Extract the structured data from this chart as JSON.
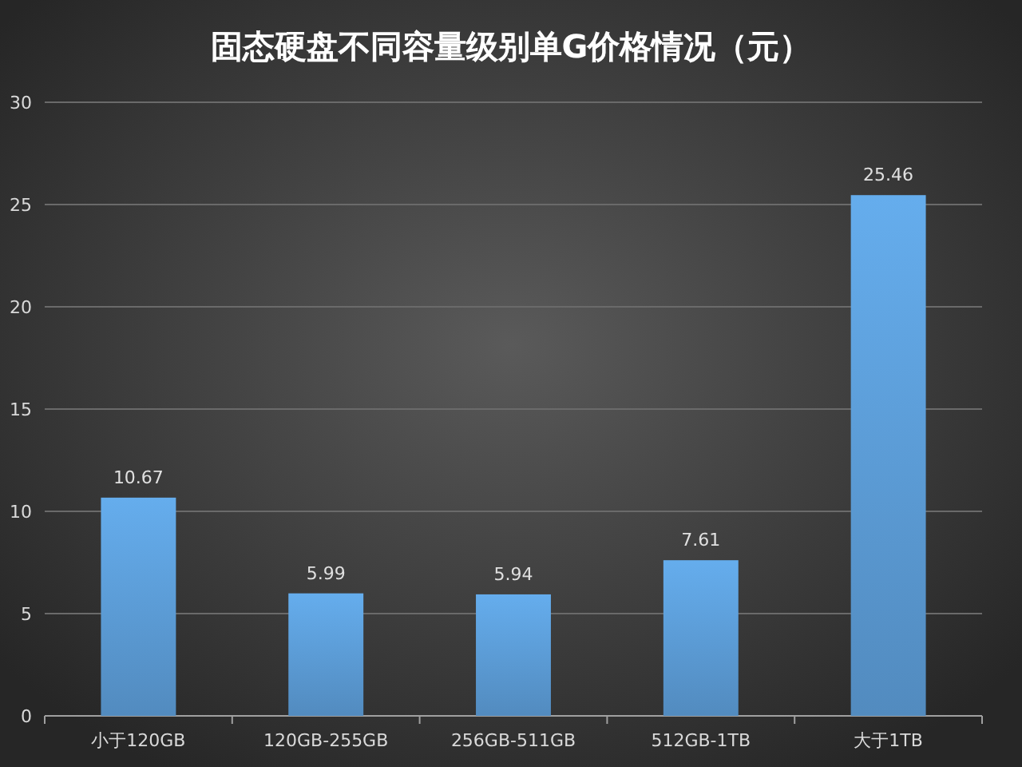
{
  "chart_data": {
    "type": "bar",
    "title": "固态硬盘不同容量级别单G价格情况（元）",
    "categories": [
      "小于120GB",
      "120GB-255GB",
      "256GB-511GB",
      "512GB-1TB",
      "大于1TB"
    ],
    "values": [
      10.67,
      5.99,
      5.94,
      7.61,
      25.46
    ],
    "color": "#5b9bd5",
    "ylim": [
      0,
      30
    ],
    "yticks": [
      0,
      5,
      10,
      15,
      20,
      25,
      30
    ],
    "grid": "y",
    "data_labels": true
  }
}
